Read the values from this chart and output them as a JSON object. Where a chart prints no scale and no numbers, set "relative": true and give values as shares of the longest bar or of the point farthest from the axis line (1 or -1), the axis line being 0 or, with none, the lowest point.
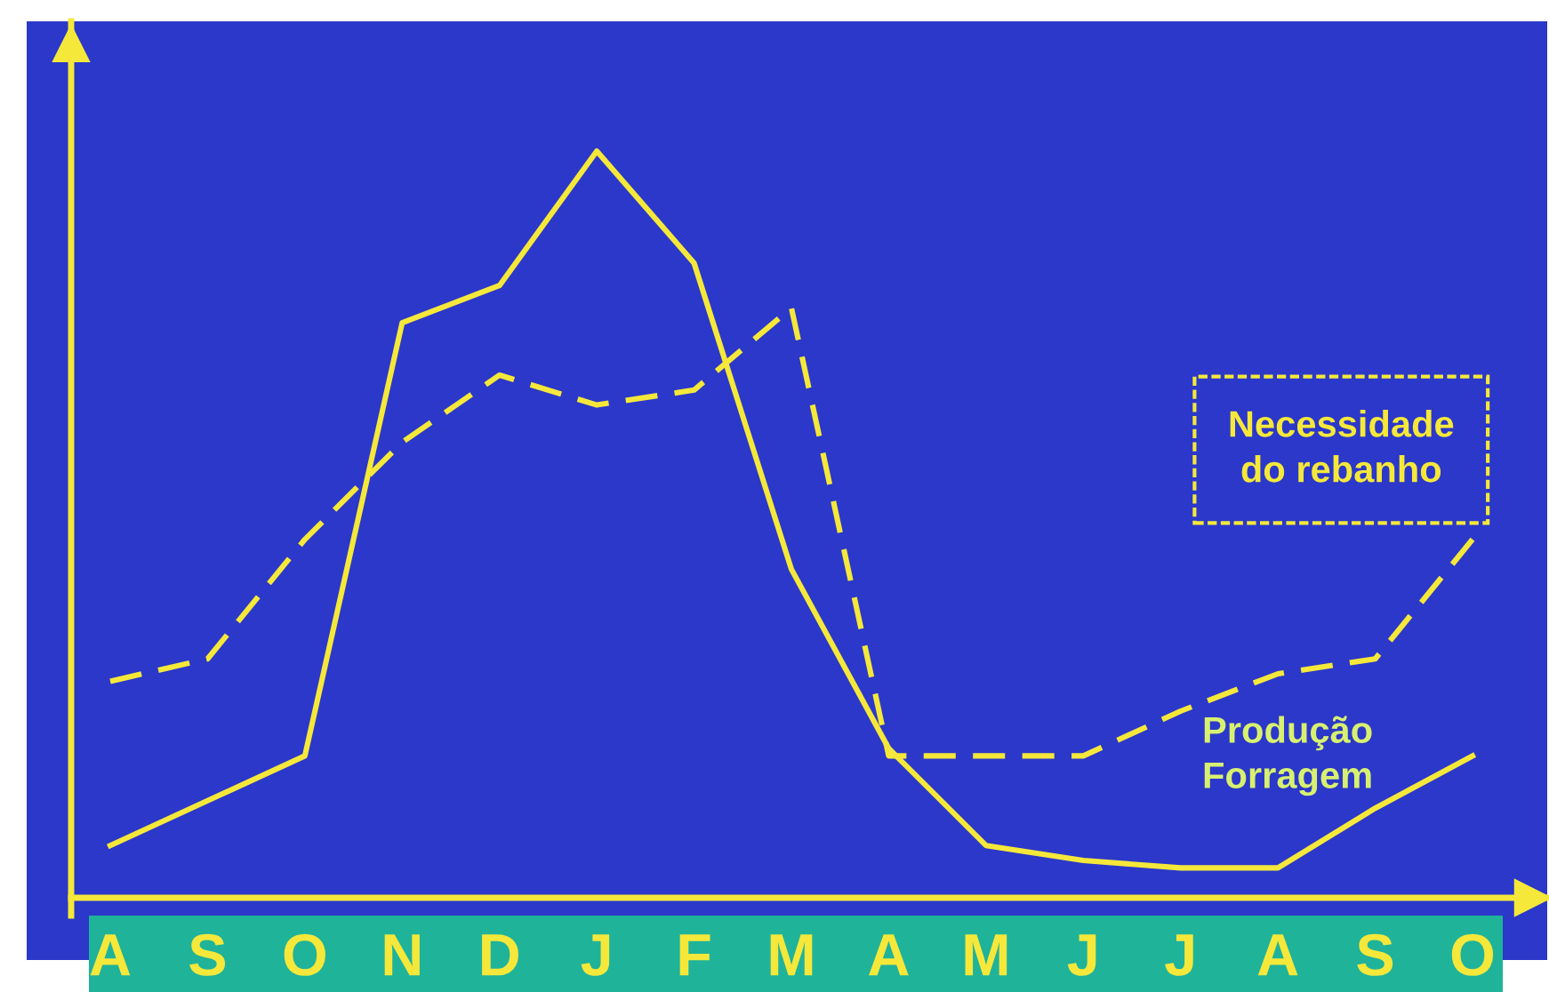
{
  "chart_data": {
    "type": "line",
    "relative": true,
    "categories": [
      "A",
      "S",
      "O",
      "N",
      "D",
      "J",
      "F",
      "M",
      "A",
      "M",
      "J",
      "J",
      "A",
      "S",
      "O"
    ],
    "series": [
      {
        "name": "Produção Forragem",
        "color": "#f5e83a",
        "line_style": "solid",
        "values": [
          0.07,
          0.13,
          0.19,
          0.77,
          0.82,
          1.0,
          0.85,
          0.44,
          0.2,
          0.07,
          0.05,
          0.04,
          0.04,
          0.12,
          0.19
        ]
      },
      {
        "name": "Necessidade do rebanho",
        "color": "#f5e83a",
        "line_style": "dashed",
        "values": [
          0.29,
          0.32,
          0.48,
          0.61,
          0.7,
          0.66,
          0.68,
          0.79,
          0.19,
          0.19,
          0.19,
          0.25,
          0.3,
          0.32,
          0.48
        ]
      }
    ],
    "grid": false,
    "legend": false,
    "marker": "none"
  }
}
